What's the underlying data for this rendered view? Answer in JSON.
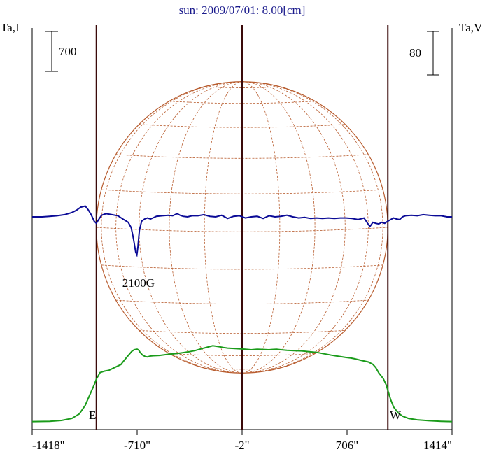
{
  "chart_data": {
    "type": "line",
    "title": "sun: 2009/07/01: 8.00[cm]",
    "left_axis_label": "Ta,I",
    "right_axis_label": "Ta,V",
    "left_scale_bar_label": "700",
    "right_scale_bar_label": "80",
    "x_tick_labels": [
      "-1418\"",
      "-710\"",
      "-2\"",
      "706\"",
      "1414\""
    ],
    "x_ticks": [
      -1418,
      -710,
      -2,
      706,
      1414
    ],
    "xlim": [
      -1418,
      1414
    ],
    "limb_markers": {
      "east_label": "E",
      "west_label": "W",
      "east_x": -985,
      "center_x": -2,
      "west_x": 981
    },
    "annotation": {
      "text": "2100G",
      "x": -715,
      "series": "V"
    },
    "grid": false,
    "solar_disk_grid": true,
    "colors": {
      "intensity": "#1a9b1a",
      "polarization": "#0a0a96",
      "limb_lines": "#3a0a0a",
      "disk": "#b85c2e",
      "title": "#1a1a8c"
    },
    "series": [
      {
        "key": "I",
        "x": [
          -1418,
          -1300,
          -1220,
          -1150,
          -1100,
          -1060,
          -1030,
          -1000,
          -985,
          -960,
          -930,
          -900,
          -860,
          -820,
          -800,
          -780,
          -760,
          -745,
          -730,
          -710,
          -700,
          -690,
          -675,
          -655,
          -640,
          -620,
          -600,
          -560,
          -500,
          -440,
          -400,
          -360,
          -320,
          -260,
          -200,
          -160,
          -130,
          -100,
          -70,
          -40,
          -10,
          20,
          60,
          100,
          140,
          180,
          200,
          230,
          260,
          300,
          350,
          400,
          450,
          500,
          550,
          600,
          650,
          700,
          730,
          760,
          800,
          850,
          880,
          900,
          920,
          950,
          970,
          985,
          1000,
          1020,
          1050,
          1080,
          1120,
          1180,
          1260,
          1340,
          1414
        ],
        "values": [
          5,
          10,
          25,
          60,
          140,
          290,
          470,
          650,
          750,
          865,
          890,
          905,
          955,
          1005,
          1070,
          1135,
          1195,
          1240,
          1265,
          1275,
          1260,
          1220,
          1175,
          1145,
          1140,
          1155,
          1160,
          1165,
          1185,
          1200,
          1215,
          1230,
          1250,
          1295,
          1335,
          1320,
          1305,
          1295,
          1290,
          1285,
          1280,
          1275,
          1265,
          1275,
          1270,
          1265,
          1270,
          1275,
          1265,
          1255,
          1250,
          1245,
          1230,
          1220,
          1195,
          1170,
          1150,
          1130,
          1120,
          1105,
          1080,
          1050,
          1010,
          950,
          860,
          760,
          650,
          520,
          390,
          260,
          160,
          100,
          60,
          35,
          20,
          10,
          5
        ]
      },
      {
        "key": "V",
        "x": [
          -1418,
          -1350,
          -1300,
          -1250,
          -1200,
          -1150,
          -1120,
          -1090,
          -1060,
          -1040,
          -1020,
          -1000,
          -985,
          -970,
          -950,
          -920,
          -880,
          -840,
          -800,
          -770,
          -750,
          -735,
          -720,
          -712,
          -705,
          -695,
          -680,
          -660,
          -640,
          -620,
          -580,
          -540,
          -500,
          -470,
          -440,
          -420,
          -400,
          -370,
          -340,
          -300,
          -260,
          -220,
          -180,
          -140,
          -100,
          -60,
          -20,
          20,
          60,
          100,
          140,
          180,
          220,
          260,
          300,
          340,
          380,
          420,
          460,
          500,
          540,
          580,
          620,
          660,
          700,
          740,
          780,
          820,
          860,
          880,
          900,
          920,
          940,
          960,
          980,
          1000,
          1020,
          1040,
          1060,
          1080,
          1100,
          1140,
          1180,
          1220,
          1260,
          1300,
          1340,
          1380,
          1414
        ],
        "values": [
          0,
          0,
          1,
          2,
          4,
          8,
          12,
          18,
          20,
          13,
          4,
          -8,
          -12,
          -5,
          3,
          6,
          4,
          2,
          -5,
          -10,
          -20,
          -40,
          -65,
          -70,
          -55,
          -25,
          -8,
          -4,
          -2,
          -4,
          1,
          2,
          3,
          2,
          6,
          3,
          1,
          0,
          2,
          2,
          4,
          1,
          0,
          3,
          -3,
          1,
          2,
          -2,
          0,
          1,
          -3,
          2,
          0,
          1,
          3,
          0,
          -2,
          -1,
          -3,
          -2,
          -3,
          -2,
          -3,
          -2,
          -2,
          -3,
          -5,
          -2,
          -18,
          -10,
          -12,
          -13,
          -10,
          -12,
          -8,
          -5,
          -2,
          -4,
          -5,
          0,
          2,
          3,
          2,
          4,
          3,
          2,
          2,
          0,
          0
        ]
      }
    ]
  }
}
